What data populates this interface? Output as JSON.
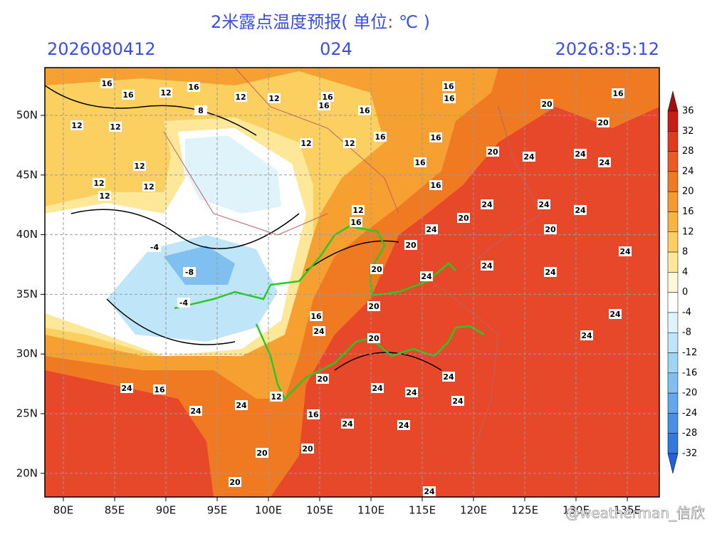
{
  "header": {
    "title": "2米露点温度预报( 单位: ℃ )",
    "init": "2026080412",
    "lead": "024",
    "valid": "2026:8:5:12"
  },
  "map": {
    "xticks": [
      "80E",
      "85E",
      "90E",
      "95E",
      "100E",
      "105E",
      "110E",
      "115E",
      "120E",
      "125E",
      "130E",
      "135E"
    ],
    "yticks": [
      "50N",
      "45N",
      "40N",
      "35N",
      "30N",
      "25N",
      "20N"
    ],
    "contour_labels": [
      16,
      16,
      12,
      16,
      12,
      12,
      16,
      16,
      16,
      16,
      16,
      16,
      20,
      20,
      12,
      12,
      8,
      16,
      16,
      12,
      12,
      20,
      24,
      24,
      24,
      12,
      16,
      12,
      12,
      12,
      16,
      12,
      16,
      20,
      24,
      24,
      24,
      24,
      20,
      20,
      24,
      20,
      24,
      24,
      24,
      20,
      24,
      16,
      24,
      20,
      24,
      20,
      24,
      16,
      24,
      24,
      24,
      24,
      24,
      12,
      16,
      24,
      24,
      24,
      20,
      20,
      20,
      24,
      -8,
      -4,
      -4
    ]
  },
  "colorbar": {
    "labels": [
      36,
      32,
      28,
      24,
      20,
      16,
      12,
      8,
      4,
      0,
      -4,
      -8,
      -12,
      -16,
      -20,
      -24,
      -28,
      -32
    ],
    "colors": [
      "#a01010",
      "#c81e14",
      "#e03a1e",
      "#ea5a22",
      "#f07a22",
      "#f59a2e",
      "#f8b640",
      "#fbd060",
      "#fde89a",
      "#fff8d8",
      "#ffffff",
      "#dff3fb",
      "#bfe6f8",
      "#9fd4f4",
      "#80c0f0",
      "#62a8ec",
      "#4890e6",
      "#3278e0",
      "#2060d8"
    ]
  },
  "watermark": "@weatherman_信欣"
}
